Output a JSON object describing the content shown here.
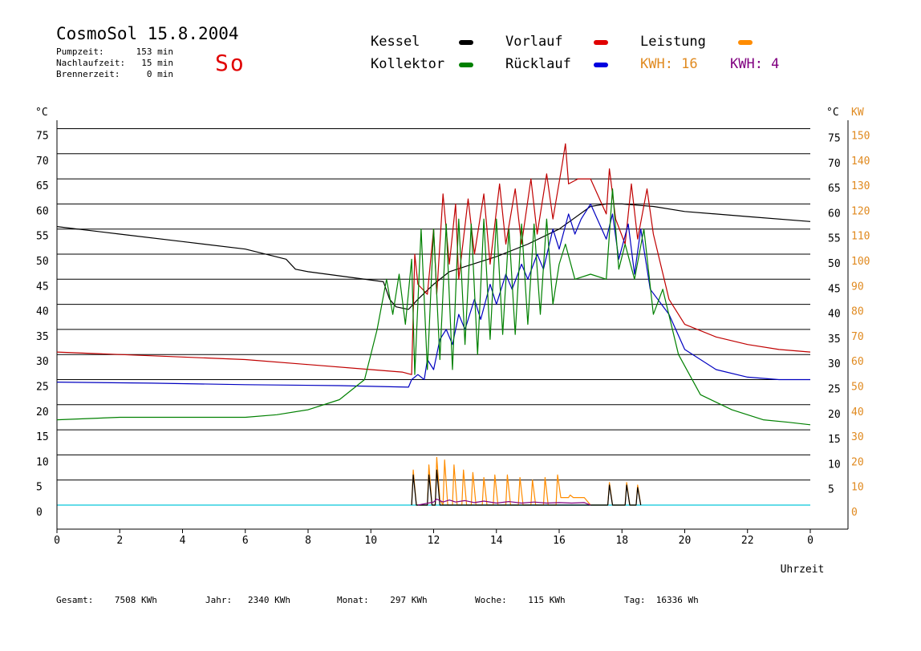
{
  "header": {
    "title": "CosmoSol 15.8.2004",
    "weekday": "So",
    "stats": [
      {
        "label": "Pumpzeit:",
        "value": "153 min"
      },
      {
        "label": "Nachlaufzeit:",
        "value": "15 min"
      },
      {
        "label": "Brennerzeit:",
        "value": "0 min"
      }
    ]
  },
  "legend": {
    "items": [
      {
        "label": "Kessel",
        "color": "#000000"
      },
      {
        "label": "Kollektor",
        "color": "#008000"
      },
      {
        "label": "Vorlauf",
        "color": "#e00000"
      },
      {
        "label": "Rücklauf",
        "color": "#0000e0"
      },
      {
        "label": "Leistung",
        "color": "#ff8c00"
      }
    ],
    "kwh_orange": "KWH: 16",
    "kwh_purple": "KWH: 4",
    "kwh_orange_color": "#e08a20",
    "kwh_purple_color": "#800080"
  },
  "footer": {
    "items": [
      {
        "label": "Gesamt:",
        "value": "7508 KWh"
      },
      {
        "label": "Jahr:",
        "value": "2340 KWh"
      },
      {
        "label": "Monat:",
        "value": "297 KWh"
      },
      {
        "label": "Woche:",
        "value": "115 KWh"
      },
      {
        "label": "Tag:",
        "value": "16336 Wh"
      }
    ]
  },
  "chart_data": {
    "type": "line",
    "xlabel": "Uhrzeit",
    "ylabel_left": "°C",
    "ylabel_right_c": "°C",
    "ylabel_right_kw": "KW",
    "x_ticks": [
      "0",
      "2",
      "4",
      "6",
      "8",
      "10",
      "12",
      "14",
      "16",
      "18",
      "20",
      "22",
      "0"
    ],
    "y_left_ticks": [
      "0",
      "5",
      "10",
      "15",
      "20",
      "25",
      "30",
      "35",
      "40",
      "45",
      "50",
      "55",
      "60",
      "65",
      "70",
      "75"
    ],
    "y_right_c_ticks": [
      "5",
      "10",
      "15",
      "20",
      "25",
      "30",
      "35",
      "40",
      "45",
      "50",
      "55",
      "60",
      "65",
      "70",
      "75"
    ],
    "y_right_kw_ticks": [
      "0",
      "10",
      "20",
      "30",
      "40",
      "50",
      "60",
      "70",
      "80",
      "90",
      "100",
      "110",
      "120",
      "130",
      "140",
      "150"
    ],
    "xlim": [
      0,
      24
    ],
    "ylim": [
      0,
      75
    ],
    "series": [
      {
        "name": "Kessel",
        "color": "#000000",
        "x": [
          0,
          2,
          4,
          6,
          7.3,
          7.6,
          8,
          10.4,
          10.6,
          10.8,
          11.2,
          11.5,
          12,
          12.5,
          13,
          14,
          15,
          16,
          17,
          17.5,
          18,
          19,
          20,
          22,
          24
        ],
        "y": [
          55.5,
          54,
          52.5,
          51,
          49,
          47,
          46.5,
          44.5,
          41,
          39.5,
          39,
          41,
          44,
          46.5,
          47.5,
          49.5,
          52,
          55,
          59.5,
          60,
          60,
          59.5,
          58.5,
          57.5,
          56.5
        ]
      },
      {
        "name": "Vorlauf",
        "color": "#c00000",
        "x": [
          0,
          2,
          4,
          6,
          8,
          10,
          11,
          11.3,
          11.4,
          11.5,
          11.8,
          12,
          12.1,
          12.3,
          12.5,
          12.7,
          12.8,
          13.1,
          13.3,
          13.6,
          13.8,
          14.1,
          14.3,
          14.6,
          14.8,
          15.1,
          15.3,
          15.6,
          15.8,
          16.1,
          16.2,
          16.3,
          16.6,
          17,
          17.5,
          17.6,
          17.8,
          18.1,
          18.3,
          18.5,
          18.8,
          19,
          19.5,
          20,
          21,
          22,
          23,
          24
        ],
        "y": [
          30.5,
          30,
          29.5,
          29,
          28,
          27,
          26.5,
          26,
          50,
          44,
          42,
          55,
          42,
          62,
          48,
          60,
          45,
          61,
          50,
          62,
          48,
          64,
          52,
          63,
          52,
          65,
          54,
          66,
          57,
          68,
          72,
          64,
          65,
          65,
          58,
          67,
          57,
          52,
          64,
          53,
          63,
          54,
          41,
          36,
          33.5,
          32,
          31,
          30.5
        ]
      },
      {
        "name": "Rücklauf",
        "color": "#0000c0",
        "x": [
          0,
          3,
          6,
          9,
          11.2,
          11.3,
          11.5,
          11.7,
          11.8,
          12,
          12.2,
          12.4,
          12.6,
          12.8,
          13,
          13.3,
          13.5,
          13.8,
          14,
          14.3,
          14.5,
          14.8,
          15,
          15.3,
          15.5,
          15.8,
          16,
          16.3,
          16.5,
          16.7,
          17,
          17.5,
          17.7,
          17.9,
          18.2,
          18.4,
          18.6,
          18.9,
          19.5,
          20,
          21,
          22,
          23,
          24
        ],
        "y": [
          24.5,
          24.3,
          24,
          23.8,
          23.5,
          25,
          26,
          25,
          29,
          27,
          33,
          35,
          32,
          38,
          35,
          41,
          37,
          44,
          40,
          46,
          43,
          48,
          45,
          50,
          47,
          55,
          51,
          58,
          54,
          57,
          60,
          53,
          58,
          49,
          56,
          46,
          55,
          43,
          38,
          31,
          27,
          25.5,
          25,
          25
        ]
      },
      {
        "name": "Kollektor",
        "color": "#008000",
        "x": [
          0,
          2,
          4,
          6,
          7,
          8,
          9,
          9.8,
          10.2,
          10.5,
          10.7,
          10.9,
          11.1,
          11.3,
          11.4,
          11.6,
          11.8,
          12,
          12.2,
          12.4,
          12.6,
          12.8,
          13,
          13.2,
          13.4,
          13.6,
          13.8,
          14,
          14.2,
          14.4,
          14.6,
          14.8,
          15,
          15.2,
          15.4,
          15.6,
          15.8,
          16,
          16.2,
          16.5,
          17,
          17.5,
          17.7,
          17.9,
          18.1,
          18.4,
          18.7,
          19,
          19.3,
          19.8,
          20.5,
          21.5,
          22.5,
          23.3,
          24
        ],
        "y": [
          17,
          17.5,
          17.5,
          17.5,
          18,
          19,
          21,
          25,
          35,
          45,
          38,
          46,
          36,
          49,
          26,
          55,
          27,
          55,
          29,
          56,
          27,
          57,
          32,
          56,
          30,
          57,
          33,
          57,
          34,
          55,
          34,
          56,
          36,
          56,
          38,
          57,
          40,
          48,
          52,
          45,
          46,
          45,
          63,
          47,
          52,
          45,
          55,
          38,
          43,
          30,
          22,
          19,
          17,
          16.5,
          16
        ]
      },
      {
        "name": "Leistung",
        "color": "#ff8c00",
        "x": [
          11.3,
          11.35,
          11.45,
          11.8,
          11.85,
          11.95,
          12.05,
          12.1,
          12.2,
          12.3,
          12.35,
          12.45,
          12.6,
          12.65,
          12.75,
          12.9,
          12.95,
          13.05,
          13.2,
          13.25,
          13.35,
          13.55,
          13.6,
          13.7,
          13.9,
          13.95,
          14.05,
          14.3,
          14.35,
          14.45,
          14.7,
          14.75,
          14.85,
          15.1,
          15.15,
          15.25,
          15.5,
          15.55,
          15.65,
          15.9,
          15.95,
          16.05,
          16.3,
          16.35,
          16.45,
          16.8,
          17.0,
          17.05,
          17.55,
          17.6,
          17.7,
          18.1,
          18.15,
          18.25,
          18.45,
          18.5,
          18.6
        ],
        "y": [
          0,
          7,
          0,
          0,
          8,
          0,
          0,
          9.5,
          1,
          0,
          9,
          0,
          0,
          8,
          0,
          0,
          7,
          0,
          0,
          6.5,
          0,
          0,
          5.5,
          0,
          0,
          6,
          0,
          0,
          6,
          0,
          0,
          5.5,
          0,
          0,
          5,
          0,
          0,
          5.5,
          0,
          0,
          6,
          1.5,
          1.5,
          2,
          1.5,
          1.5,
          0,
          0,
          0,
          4.5,
          0,
          0,
          4.5,
          0,
          0,
          4,
          0
        ]
      },
      {
        "name": "Kessel-KW",
        "color": "#000000",
        "x": [
          11.3,
          11.35,
          11.45,
          11.8,
          11.85,
          11.95,
          12.05,
          12.1,
          12.2,
          17.55,
          17.6,
          17.7,
          18.1,
          18.15,
          18.25,
          18.45,
          18.5,
          18.6
        ],
        "y": [
          0,
          6,
          0,
          0,
          6,
          0,
          0,
          7,
          0,
          0,
          4,
          0,
          0,
          4,
          0,
          0,
          3.5,
          0
        ]
      },
      {
        "name": "KWH-purple",
        "color": "#800080",
        "x": [
          11.5,
          12,
          12.1,
          12.3,
          12.5,
          12.7,
          13,
          13.3,
          13.6,
          14,
          14.4,
          14.8,
          15.2,
          15.6,
          16,
          16.4,
          16.8,
          17
        ],
        "y": [
          0,
          0.6,
          1.2,
          0.6,
          1.0,
          0.6,
          0.9,
          0.5,
          0.8,
          0.4,
          0.7,
          0.4,
          0.6,
          0.4,
          0.5,
          0.4,
          0.5,
          0
        ]
      }
    ],
    "grid": true,
    "legend_position": "top"
  }
}
